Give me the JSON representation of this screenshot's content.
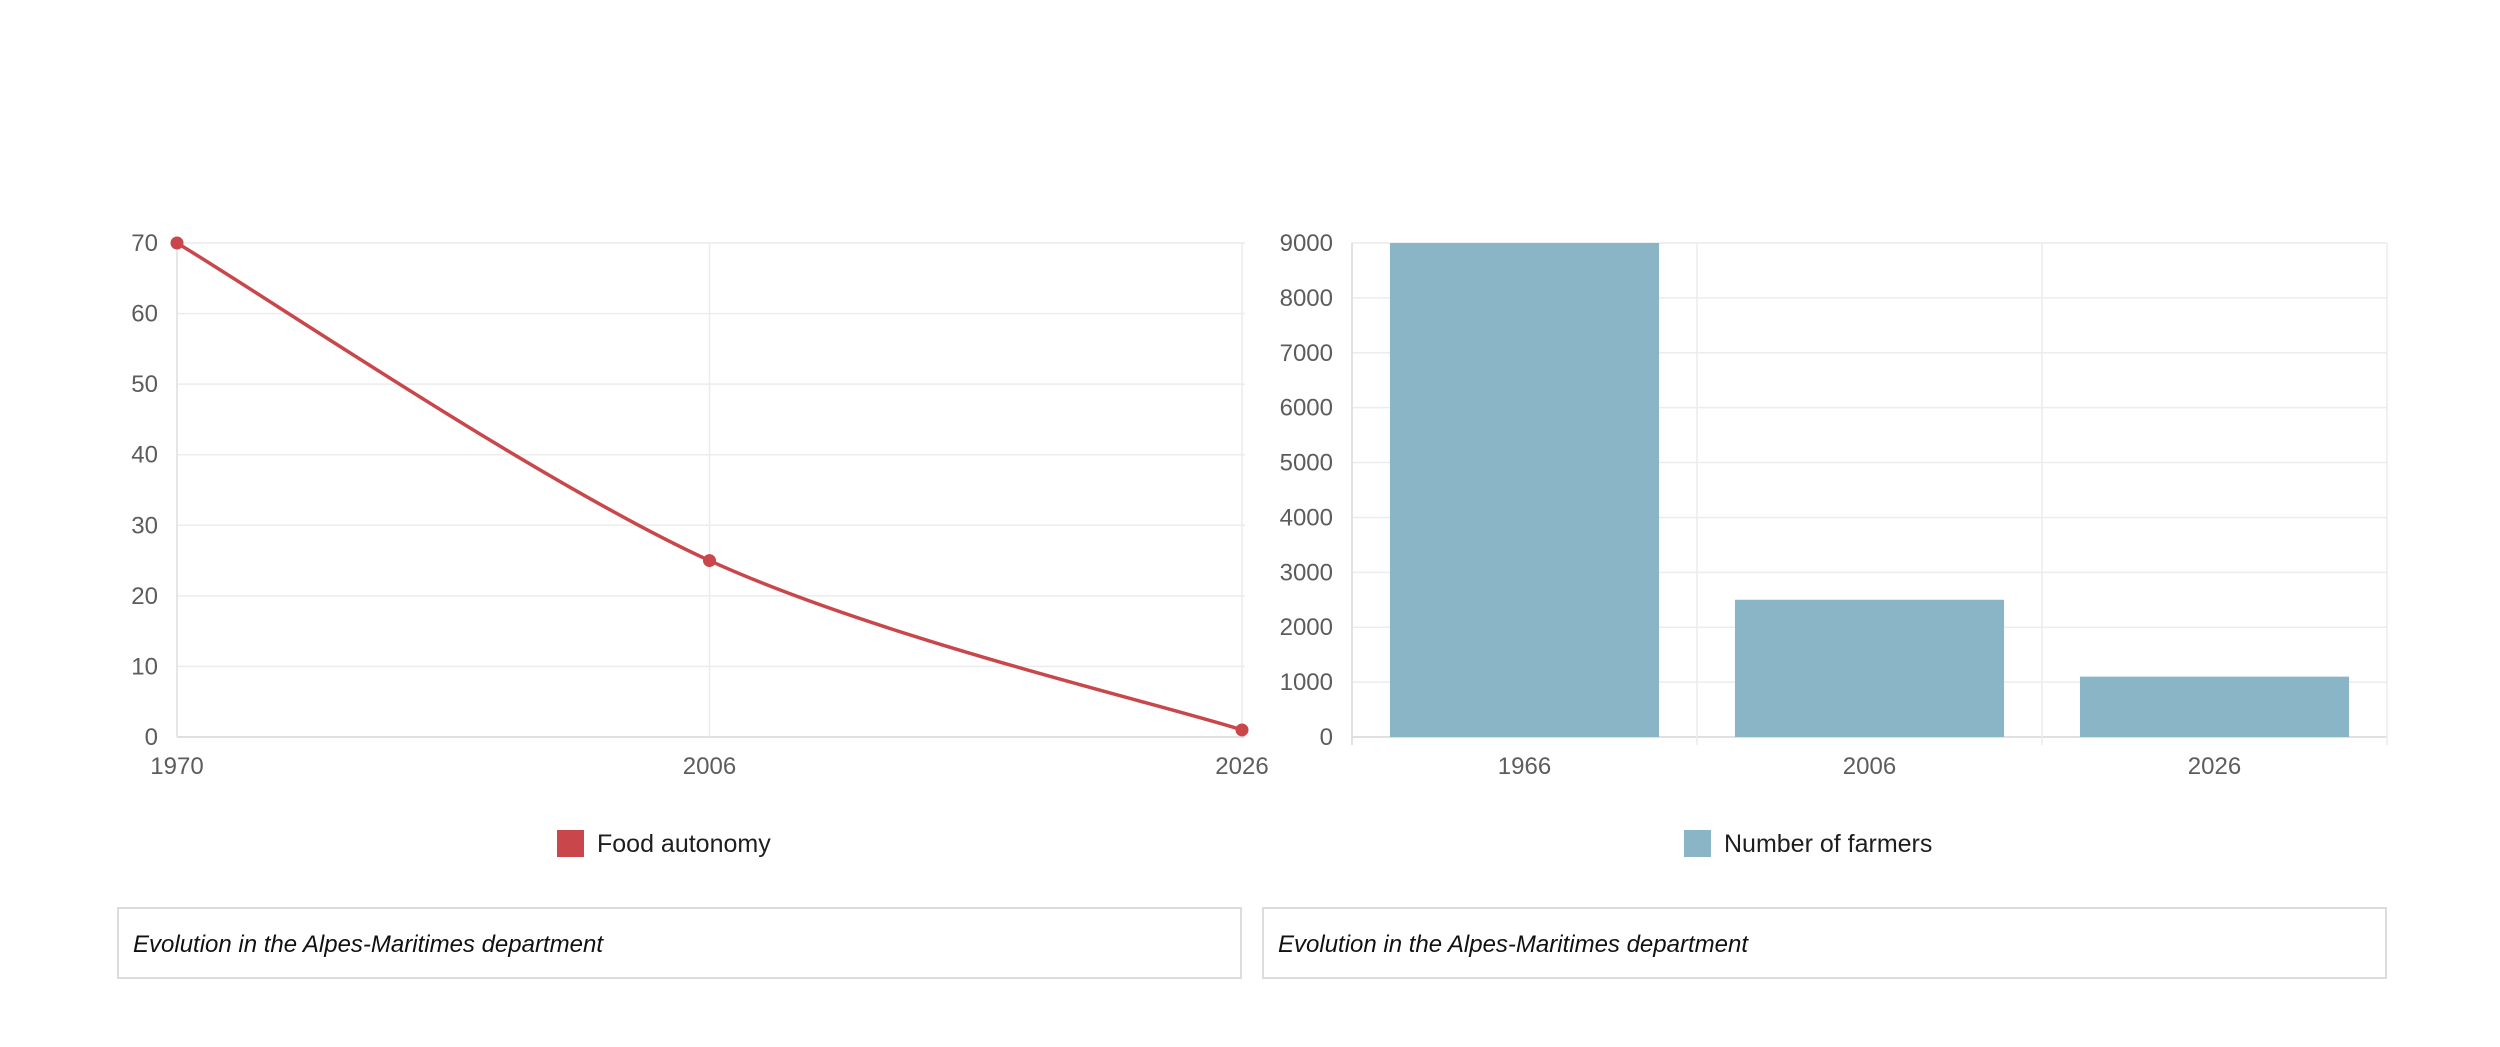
{
  "chart_data": [
    {
      "type": "line",
      "title": "",
      "xlabel": "",
      "ylabel": "",
      "x": [
        "1970",
        "2006",
        "2026"
      ],
      "series": [
        {
          "name": "Food autonomy",
          "values": [
            70,
            25,
            1
          ],
          "color": "#c9474b"
        }
      ],
      "ylim": [
        0,
        70
      ],
      "yticks": [
        0,
        10,
        20,
        30,
        40,
        50,
        60,
        70
      ],
      "grid": true,
      "legend": "bottom-center"
    },
    {
      "type": "bar",
      "title": "",
      "xlabel": "",
      "ylabel": "",
      "categories": [
        "1966",
        "2006",
        "2026"
      ],
      "series": [
        {
          "name": "Number of farmers",
          "values": [
            9000,
            2500,
            1100
          ],
          "color": "#8ab5c6"
        }
      ],
      "ylim": [
        0,
        9000
      ],
      "yticks": [
        0,
        1000,
        2000,
        3000,
        4000,
        5000,
        6000,
        7000,
        8000,
        9000
      ],
      "grid": true,
      "legend": "bottom-center"
    }
  ],
  "captions": {
    "left": "Evolution in the Alpes-Maritimes department",
    "right": "Evolution in the Alpes-Maritimes department"
  }
}
